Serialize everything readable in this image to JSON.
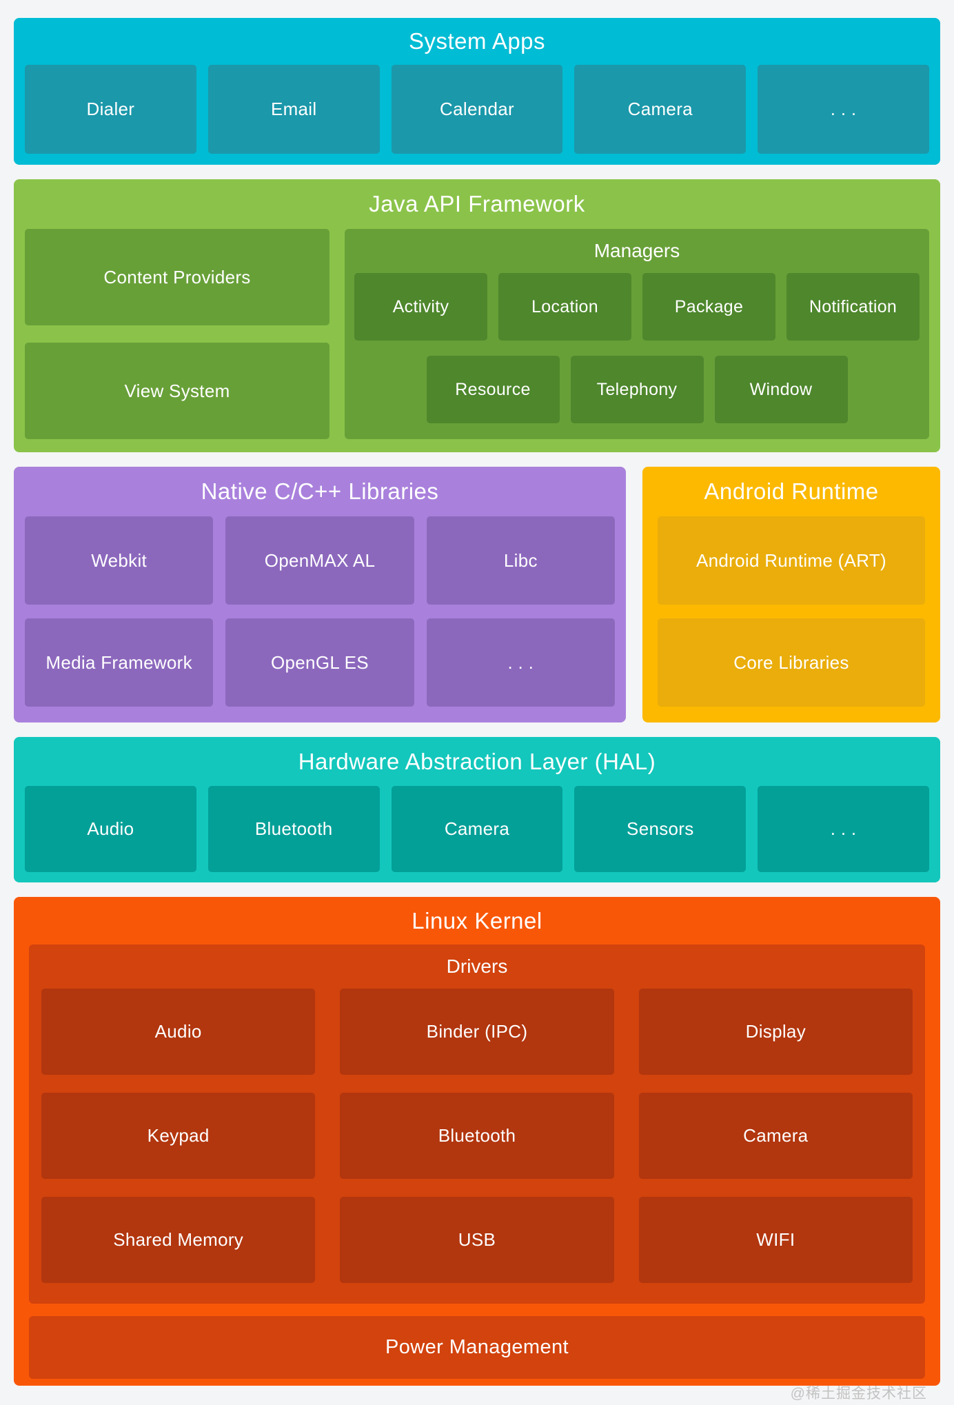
{
  "page": {
    "background": "#F4F5F6",
    "watermark": "@稀土掘金技术社区"
  },
  "sections": {
    "system_apps": {
      "title": "System Apps",
      "colors": {
        "band": "#00BCD4",
        "box": "#1B98AA"
      },
      "boxes": [
        "Dialer",
        "Email",
        "Calendar",
        "Camera",
        ". . ."
      ]
    },
    "java_api": {
      "title": "Java API Framework",
      "colors": {
        "band": "#8BC34A",
        "box": "#68A038",
        "child": "#4E872C"
      },
      "left_boxes": [
        "Content Providers",
        "View System"
      ],
      "managers": {
        "title": "Managers",
        "row1": [
          "Activity",
          "Location",
          "Package",
          "Notification"
        ],
        "row2": [
          "Resource",
          "Telephony",
          "Window"
        ]
      }
    },
    "native_libs": {
      "title": "Native C/C++ Libraries",
      "colors": {
        "band": "#A981DC",
        "box": "#8C68BD"
      },
      "row1": [
        "Webkit",
        "OpenMAX AL",
        "Libc"
      ],
      "row2": [
        "Media Framework",
        "OpenGL ES",
        ". . ."
      ]
    },
    "android_runtime": {
      "title": "Android Runtime",
      "colors": {
        "band": "#FCB900",
        "box": "#EAAD0B"
      },
      "boxes": [
        "Android Runtime (ART)",
        "Core Libraries"
      ]
    },
    "hal": {
      "title": "Hardware Abstraction Layer (HAL)",
      "colors": {
        "band": "#13C7BC",
        "box": "#03A098"
      },
      "boxes": [
        "Audio",
        "Bluetooth",
        "Camera",
        "Sensors",
        ". . ."
      ]
    },
    "linux_kernel": {
      "title": "Linux Kernel",
      "colors": {
        "band": "#F95708",
        "container": "#D2430D",
        "box": "#B2360E"
      },
      "drivers": {
        "title": "Drivers",
        "grid": [
          [
            "Audio",
            "Binder (IPC)",
            "Display"
          ],
          [
            "Keypad",
            "Bluetooth",
            "Camera"
          ],
          [
            "Shared Memory",
            "USB",
            "WIFI"
          ]
        ]
      },
      "power": "Power Management"
    }
  }
}
